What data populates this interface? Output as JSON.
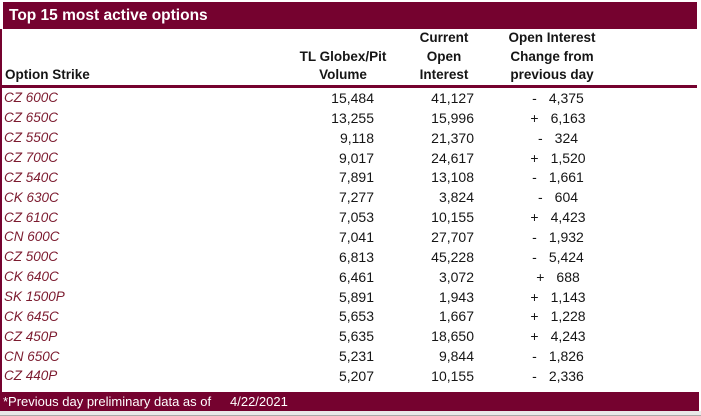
{
  "title": "Top 15 most active options",
  "colors": {
    "maroon": "#75022F",
    "strike_text": "#7C1B2F",
    "body_text": "#151515",
    "background": "#FFFFFF"
  },
  "table": {
    "headers": {
      "option_strike": "Option Strike",
      "volume_line1": "TL Globex/Pit",
      "volume_line2": "Volume",
      "current_oi_line1": "Current",
      "current_oi_line2": "Open",
      "current_oi_line3": "Interest",
      "change_line1": "Open Interest",
      "change_line2": "Change from",
      "change_line3": "previous day"
    },
    "rows": [
      {
        "strike": "CZ 600C",
        "volume": "15,484",
        "open_interest": "41,127",
        "change_sign": "-",
        "change_value": "4,375"
      },
      {
        "strike": "CZ 650C",
        "volume": "13,255",
        "open_interest": "15,996",
        "change_sign": "+",
        "change_value": "6,163"
      },
      {
        "strike": "CZ 550C",
        "volume": "9,118",
        "open_interest": "21,370",
        "change_sign": "-",
        "change_value": "324"
      },
      {
        "strike": "CZ 700C",
        "volume": "9,017",
        "open_interest": "24,617",
        "change_sign": "+",
        "change_value": "1,520"
      },
      {
        "strike": "CZ 540C",
        "volume": "7,891",
        "open_interest": "13,108",
        "change_sign": "-",
        "change_value": "1,661"
      },
      {
        "strike": "CK 630C",
        "volume": "7,277",
        "open_interest": "3,824",
        "change_sign": "-",
        "change_value": "604"
      },
      {
        "strike": "CZ 610C",
        "volume": "7,053",
        "open_interest": "10,155",
        "change_sign": "+",
        "change_value": "4,423"
      },
      {
        "strike": "CN 600C",
        "volume": "7,041",
        "open_interest": "27,707",
        "change_sign": "-",
        "change_value": "1,932"
      },
      {
        "strike": "CZ 500C",
        "volume": "6,813",
        "open_interest": "45,228",
        "change_sign": "-",
        "change_value": "5,424"
      },
      {
        "strike": "CK 640C",
        "volume": "6,461",
        "open_interest": "3,072",
        "change_sign": "+",
        "change_value": "688"
      },
      {
        "strike": "SK 1500P",
        "volume": "5,891",
        "open_interest": "1,943",
        "change_sign": "+",
        "change_value": "1,143"
      },
      {
        "strike": "CK 645C",
        "volume": "5,653",
        "open_interest": "1,667",
        "change_sign": "+",
        "change_value": "1,228"
      },
      {
        "strike": "CZ 450P",
        "volume": "5,635",
        "open_interest": "18,650",
        "change_sign": "+",
        "change_value": "4,243"
      },
      {
        "strike": "CN 650C",
        "volume": "5,231",
        "open_interest": "9,844",
        "change_sign": "-",
        "change_value": "1,826"
      },
      {
        "strike": "CZ 440P",
        "volume": "5,207",
        "open_interest": "10,155",
        "change_sign": "-",
        "change_value": "2,336"
      }
    ]
  },
  "footer": {
    "note": "*Previous day preliminary data as of",
    "date": "4/22/2021"
  }
}
